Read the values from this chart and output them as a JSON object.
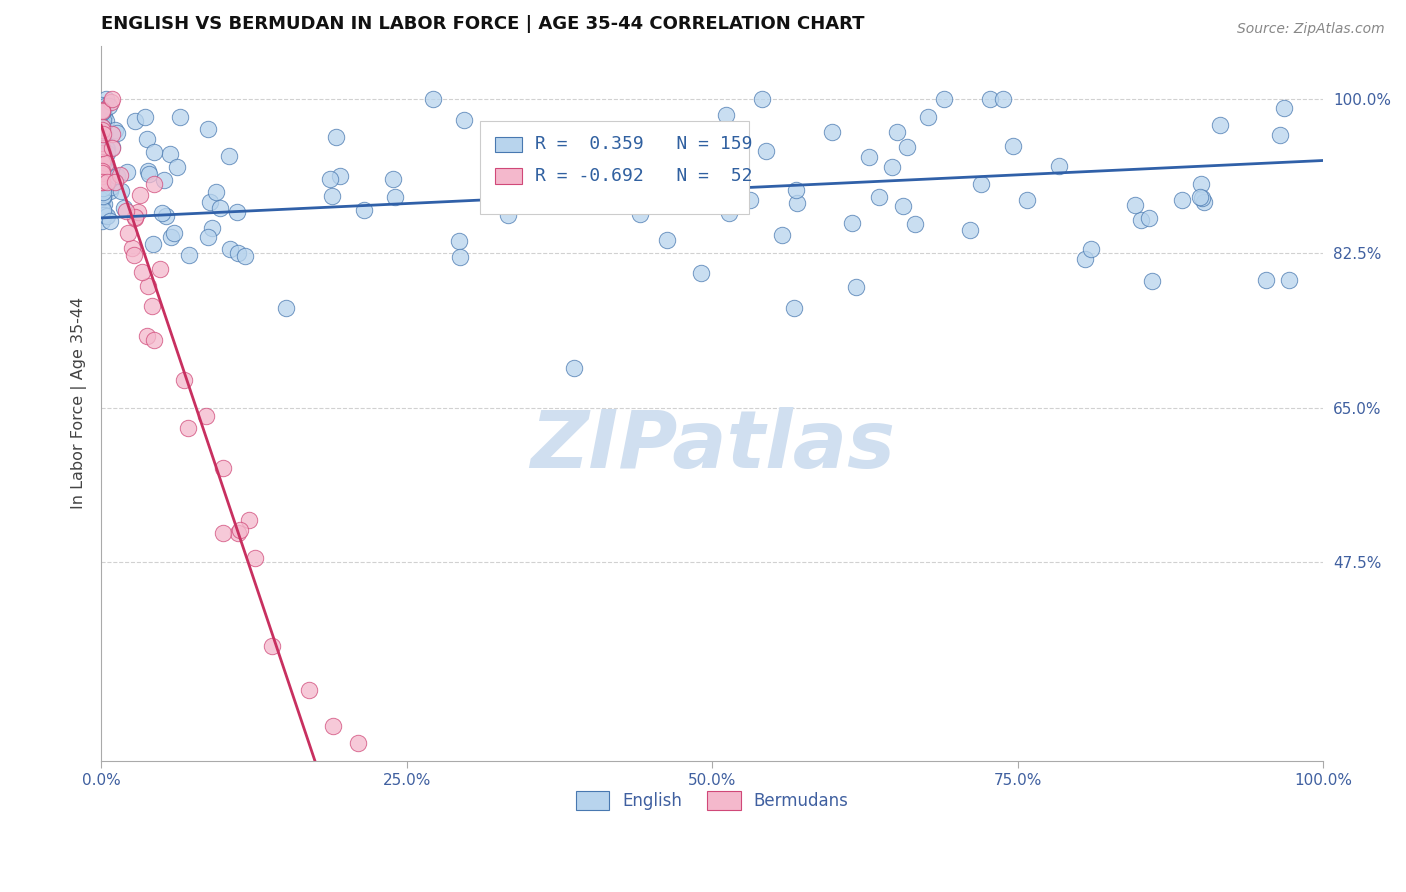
{
  "title": "ENGLISH VS BERMUDAN IN LABOR FORCE | AGE 35-44 CORRELATION CHART",
  "source_text": "Source: ZipAtlas.com",
  "ylabel": "In Labor Force | Age 35-44",
  "yticks": [
    0.475,
    0.65,
    0.825,
    1.0
  ],
  "ytick_labels": [
    "47.5%",
    "65.0%",
    "82.5%",
    "100.0%"
  ],
  "xticks": [
    0.0,
    0.25,
    0.5,
    0.75,
    1.0
  ],
  "xtick_labels": [
    "0.0%",
    "25.0%",
    "50.0%",
    "75.0%",
    "100.0%"
  ],
  "xlim": [
    0.0,
    1.0
  ],
  "ylim": [
    0.25,
    1.06
  ],
  "blue_R": 0.359,
  "blue_N": 159,
  "pink_R": -0.692,
  "pink_N": 52,
  "blue_fill_color": "#b8d4ed",
  "blue_edge_color": "#4878b0",
  "pink_fill_color": "#f4b8cc",
  "pink_edge_color": "#d04878",
  "blue_line_color": "#3060a8",
  "pink_line_color": "#c83060",
  "watermark": "ZIPatlas",
  "watermark_color": "#d0dff0",
  "legend_english": "English",
  "legend_bermudans": "Bermudans",
  "blue_trend_x0": 0.0,
  "blue_trend_x1": 1.0,
  "blue_trend_y0": 0.865,
  "blue_trend_y1": 0.93,
  "pink_trend_x0": 0.0,
  "pink_trend_x1": 0.175,
  "pink_trend_y0": 0.97,
  "pink_trend_y1": 0.25
}
